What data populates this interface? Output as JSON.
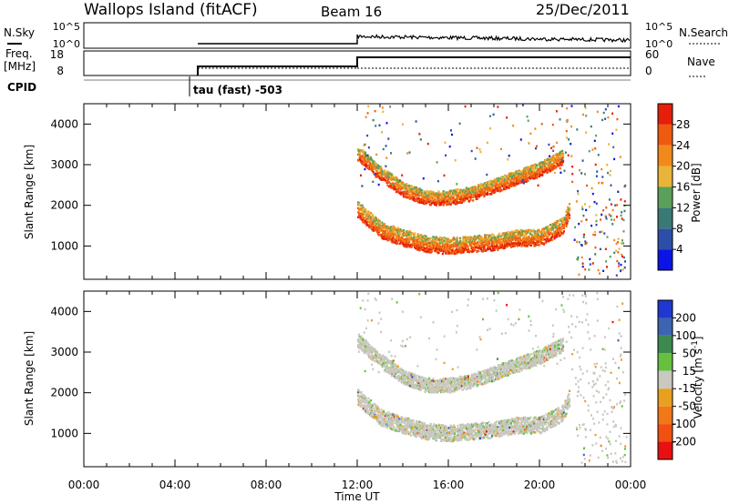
{
  "header": {
    "station": "Wallops Island (fitACF)",
    "beam": "Beam 16",
    "date": "25/Dec/2011"
  },
  "top_panels": {
    "nsky_label": "N.Sky",
    "nsky_ticks": [
      "10^5",
      "10^0"
    ],
    "nsearch_label": "N.Search",
    "nsearch_ticks": [
      "10^5",
      "10^0"
    ],
    "freq_label": "Freq.",
    "freq_unit": "[MHz]",
    "freq_ticks": [
      "18",
      "8"
    ],
    "nave_label": "Nave",
    "nave_ticks": [
      "60",
      "0"
    ],
    "cpid_label": "CPID",
    "cpid_annotation": "tau (fast) -503"
  },
  "chart_data": [
    {
      "type": "heatmap",
      "panel": "power",
      "ylabel": "Slant Range [km]",
      "yticks": [
        "1000",
        "2000",
        "3000",
        "4000"
      ],
      "ylim": [
        180,
        4500
      ],
      "colorbar_label": "Power [dB]",
      "colorbar_ticks": [
        "4",
        "8",
        "12",
        "16",
        "20",
        "24",
        "28"
      ],
      "colorbar_range": [
        0,
        32
      ],
      "colors": [
        "#0a14e6",
        "#2c4ea8",
        "#3a7a74",
        "#5aa05a",
        "#e8b43a",
        "#f08a1c",
        "#f05a10",
        "#e61e0a"
      ],
      "data_start_hour": 12,
      "echo_bands": [
        {
          "h_start": 12.0,
          "h_end": 21.3,
          "range_km": [
            [
              12.0,
              1800
            ],
            [
              13.0,
              1300
            ],
            [
              14.0,
              1100
            ],
            [
              15.0,
              950
            ],
            [
              16.0,
              900
            ],
            [
              17.0,
              950
            ],
            [
              18.0,
              1000
            ],
            [
              19.0,
              1100
            ],
            [
              20.0,
              1100
            ],
            [
              21.0,
              1400
            ],
            [
              21.3,
              1800
            ]
          ],
          "thickness_km": 400
        },
        {
          "h_start": 12.0,
          "h_end": 21.0,
          "range_km": [
            [
              12.0,
              3200
            ],
            [
              13.0,
              2700
            ],
            [
              14.0,
              2300
            ],
            [
              15.0,
              2100
            ],
            [
              16.0,
              2100
            ],
            [
              17.0,
              2200
            ],
            [
              18.0,
              2400
            ],
            [
              19.0,
              2600
            ],
            [
              20.0,
              2800
            ],
            [
              21.0,
              3100
            ]
          ],
          "thickness_km": 350
        }
      ]
    },
    {
      "type": "heatmap",
      "panel": "velocity",
      "ylabel": "Slant Range [km]",
      "yticks": [
        "1000",
        "2000",
        "3000",
        "4000"
      ],
      "ylim": [
        180,
        4500
      ],
      "xlabel": "Time UT",
      "xticks": [
        "00:00",
        "04:00",
        "08:00",
        "12:00",
        "16:00",
        "20:00",
        "00:00"
      ],
      "xlim_hours": [
        0,
        24
      ],
      "colorbar_label": "Velocity [m s^-1]",
      "colorbar_ticks": [
        "200",
        "100",
        "50",
        "15",
        "-15",
        "-50",
        "-100",
        "-200"
      ],
      "colors": [
        "#2038d0",
        "#3c64b0",
        "#3c8a50",
        "#66c040",
        "#c8c8c0",
        "#e8a020",
        "#f07818",
        "#f05010",
        "#e81010"
      ]
    }
  ]
}
